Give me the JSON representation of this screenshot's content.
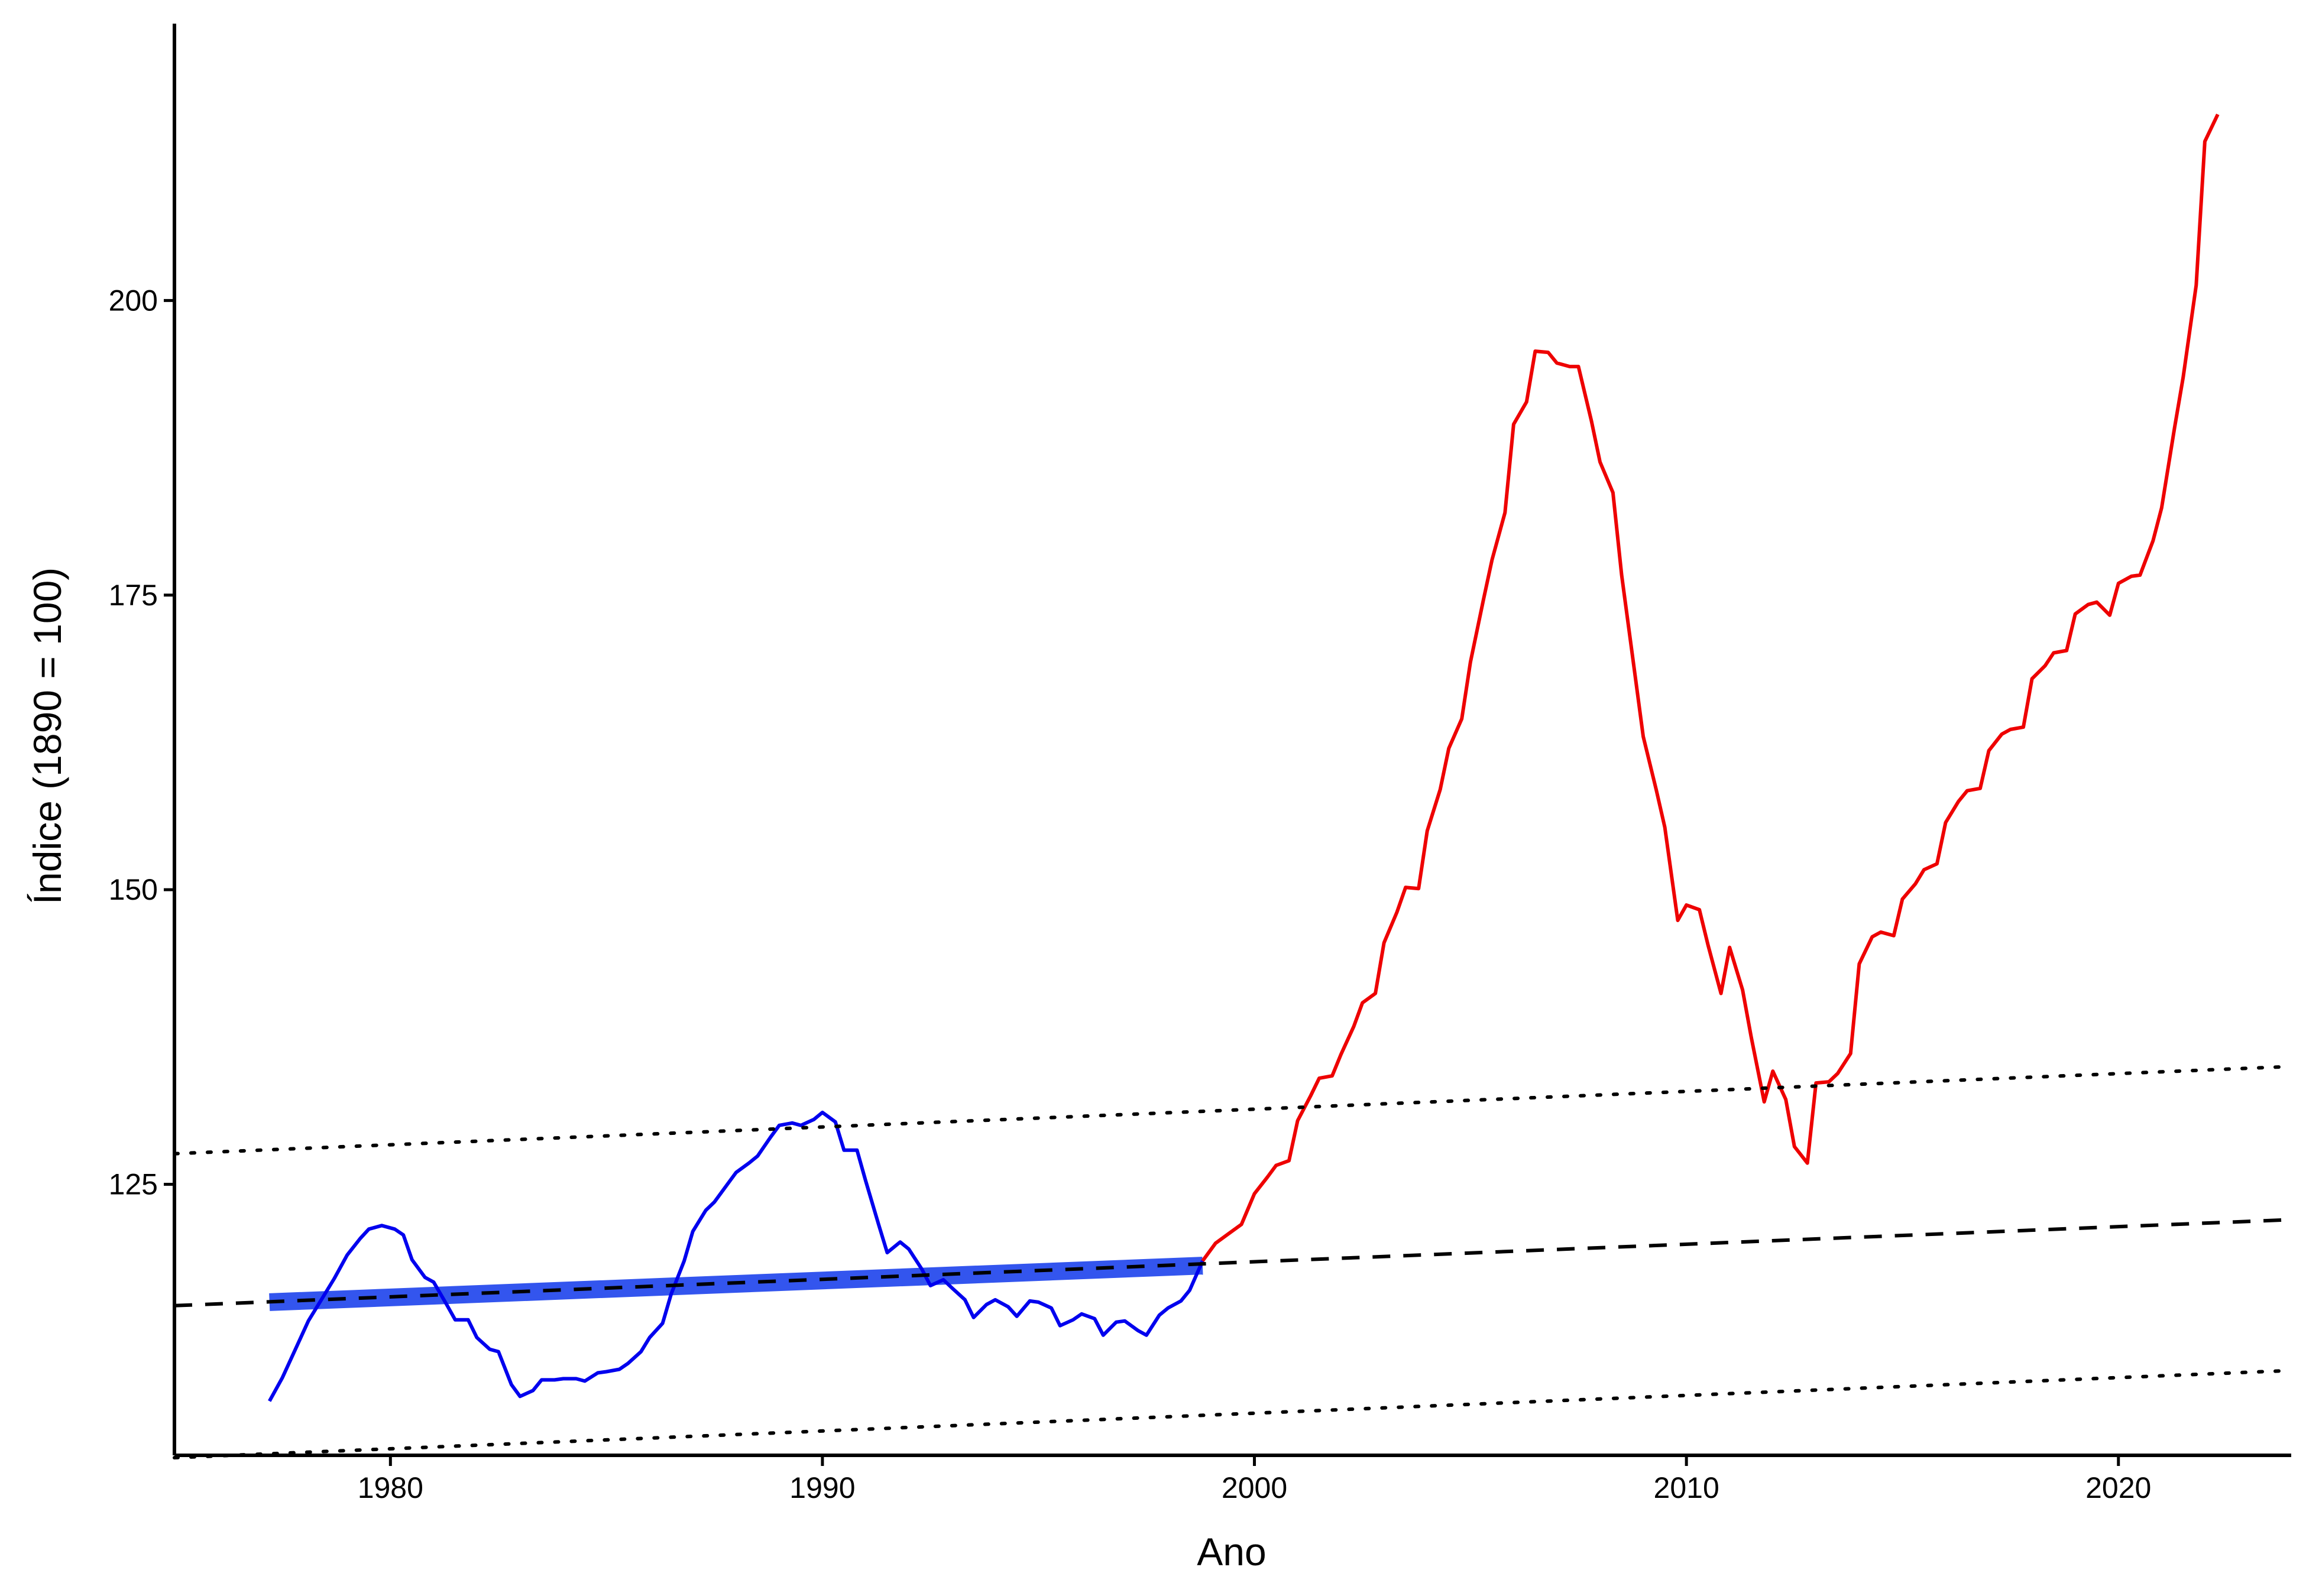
{
  "chart_data": {
    "type": "line",
    "title": "",
    "xlabel": "Ano",
    "ylabel": "Índice (1890 = 100)",
    "xlim": [
      1975.0,
      2024.0
    ],
    "ylim": [
      102,
      224
    ],
    "x_ticks": [
      1980,
      1990,
      2000,
      2010,
      2020
    ],
    "x_tick_labels": [
      "1980",
      "1990",
      "2000",
      "2010",
      "2020"
    ],
    "y_ticks": [
      125,
      150,
      175,
      200
    ],
    "y_tick_labels": [
      "125",
      "150",
      "175",
      "200"
    ],
    "grid": false,
    "legend": "none",
    "series": [
      {
        "color": "#0000ee",
        "style": "solid",
        "points": [
          [
            1977.2,
            106.6
          ],
          [
            1977.5,
            108.6
          ],
          [
            1977.8,
            111.0
          ],
          [
            1978.1,
            113.4
          ],
          [
            1978.4,
            115.2
          ],
          [
            1978.7,
            117.0
          ],
          [
            1979.0,
            119.0
          ],
          [
            1979.3,
            120.4
          ],
          [
            1979.5,
            121.2
          ],
          [
            1979.8,
            121.5
          ],
          [
            1980.1,
            121.2
          ],
          [
            1980.3,
            120.7
          ],
          [
            1980.5,
            118.6
          ],
          [
            1980.8,
            117.1
          ],
          [
            1981.0,
            116.7
          ],
          [
            1981.3,
            114.8
          ],
          [
            1981.5,
            113.5
          ],
          [
            1981.8,
            113.5
          ],
          [
            1982.0,
            112.0
          ],
          [
            1982.3,
            111.0
          ],
          [
            1982.5,
            110.8
          ],
          [
            1982.8,
            108.0
          ],
          [
            1983.0,
            107.0
          ],
          [
            1983.3,
            107.5
          ],
          [
            1983.5,
            108.4
          ],
          [
            1983.8,
            108.4
          ],
          [
            1984.0,
            108.5
          ],
          [
            1984.3,
            108.5
          ],
          [
            1984.5,
            108.3
          ],
          [
            1984.8,
            109.0
          ],
          [
            1985.0,
            109.1
          ],
          [
            1985.3,
            109.3
          ],
          [
            1985.5,
            109.8
          ],
          [
            1985.8,
            110.8
          ],
          [
            1986.0,
            112.0
          ],
          [
            1986.3,
            113.2
          ],
          [
            1986.5,
            115.7
          ],
          [
            1986.8,
            118.5
          ],
          [
            1987.0,
            121.0
          ],
          [
            1987.3,
            122.8
          ],
          [
            1987.5,
            123.5
          ],
          [
            1987.8,
            125.0
          ],
          [
            1988.0,
            126.0
          ],
          [
            1988.3,
            126.8
          ],
          [
            1988.5,
            127.4
          ],
          [
            1988.8,
            129.0
          ],
          [
            1989.0,
            130.0
          ],
          [
            1989.3,
            130.2
          ],
          [
            1989.5,
            130.0
          ],
          [
            1989.8,
            130.5
          ],
          [
            1990.0,
            131.1
          ],
          [
            1990.3,
            130.3
          ],
          [
            1990.5,
            127.9
          ],
          [
            1990.8,
            127.9
          ],
          [
            1991.0,
            125.3
          ],
          [
            1991.3,
            121.6
          ],
          [
            1991.5,
            119.2
          ],
          [
            1991.8,
            120.1
          ],
          [
            1992.0,
            119.5
          ],
          [
            1992.3,
            117.8
          ],
          [
            1992.5,
            116.4
          ],
          [
            1992.8,
            116.9
          ],
          [
            1993.0,
            116.2
          ],
          [
            1993.3,
            115.2
          ],
          [
            1993.5,
            113.7
          ],
          [
            1993.8,
            114.8
          ],
          [
            1994.0,
            115.2
          ],
          [
            1994.3,
            114.6
          ],
          [
            1994.5,
            113.8
          ],
          [
            1994.8,
            115.1
          ],
          [
            1995.0,
            115.0
          ],
          [
            1995.3,
            114.5
          ],
          [
            1995.5,
            113.0
          ],
          [
            1995.8,
            113.5
          ],
          [
            1996.0,
            114.0
          ],
          [
            1996.3,
            113.6
          ],
          [
            1996.5,
            112.2
          ],
          [
            1996.8,
            113.3
          ],
          [
            1997.0,
            113.4
          ],
          [
            1997.3,
            112.6
          ],
          [
            1997.5,
            112.2
          ],
          [
            1997.8,
            113.9
          ],
          [
            1998.0,
            114.5
          ],
          [
            1998.3,
            115.1
          ],
          [
            1998.5,
            116.0
          ],
          [
            1998.8,
            118.5
          ]
        ]
      },
      {
        "color": "#ee0000",
        "style": "solid",
        "points": [
          [
            1998.8,
            118.5
          ],
          [
            1999.1,
            120.0
          ],
          [
            1999.4,
            120.8
          ],
          [
            1999.7,
            121.6
          ],
          [
            2000.0,
            124.2
          ],
          [
            2000.3,
            125.6
          ],
          [
            2000.5,
            126.6
          ],
          [
            2000.8,
            127.0
          ],
          [
            2001.0,
            130.4
          ],
          [
            2001.3,
            132.5
          ],
          [
            2001.5,
            134.0
          ],
          [
            2001.8,
            134.2
          ],
          [
            2002.0,
            136.0
          ],
          [
            2002.3,
            138.4
          ],
          [
            2002.5,
            140.4
          ],
          [
            2002.8,
            141.2
          ],
          [
            2003.0,
            145.5
          ],
          [
            2003.3,
            148.1
          ],
          [
            2003.5,
            150.2
          ],
          [
            2003.8,
            150.1
          ],
          [
            2004.0,
            155.0
          ],
          [
            2004.3,
            158.5
          ],
          [
            2004.5,
            162.0
          ],
          [
            2004.8,
            164.5
          ],
          [
            2005.0,
            169.3
          ],
          [
            2005.3,
            174.6
          ],
          [
            2005.5,
            178.0
          ],
          [
            2005.8,
            182.0
          ],
          [
            2006.0,
            189.5
          ],
          [
            2006.3,
            191.4
          ],
          [
            2006.5,
            195.7
          ],
          [
            2006.8,
            195.6
          ],
          [
            2007.0,
            194.7
          ],
          [
            2007.3,
            194.4
          ],
          [
            2007.5,
            194.4
          ],
          [
            2007.8,
            189.8
          ],
          [
            2008.0,
            186.3
          ],
          [
            2008.3,
            183.7
          ],
          [
            2008.5,
            176.7
          ],
          [
            2008.8,
            168.5
          ],
          [
            2009.0,
            163.0
          ],
          [
            2009.3,
            158.5
          ],
          [
            2009.5,
            155.3
          ],
          [
            2009.8,
            147.4
          ],
          [
            2010.0,
            148.7
          ],
          [
            2010.3,
            148.3
          ],
          [
            2010.5,
            145.3
          ],
          [
            2010.8,
            141.2
          ],
          [
            2011.0,
            145.1
          ],
          [
            2011.3,
            141.5
          ],
          [
            2011.5,
            137.5
          ],
          [
            2011.8,
            132.0
          ],
          [
            2012.0,
            134.6
          ],
          [
            2012.3,
            132.2
          ],
          [
            2012.5,
            128.2
          ],
          [
            2012.8,
            126.8
          ],
          [
            2013.0,
            133.6
          ],
          [
            2013.3,
            133.7
          ],
          [
            2013.5,
            134.4
          ],
          [
            2013.8,
            136.1
          ],
          [
            2014.0,
            143.7
          ],
          [
            2014.3,
            146.0
          ],
          [
            2014.5,
            146.4
          ],
          [
            2014.8,
            146.1
          ],
          [
            2015.0,
            149.2
          ],
          [
            2015.3,
            150.5
          ],
          [
            2015.5,
            151.7
          ],
          [
            2015.8,
            152.2
          ],
          [
            2016.0,
            155.7
          ],
          [
            2016.3,
            157.5
          ],
          [
            2016.5,
            158.4
          ],
          [
            2016.8,
            158.6
          ],
          [
            2017.0,
            161.8
          ],
          [
            2017.3,
            163.2
          ],
          [
            2017.5,
            163.6
          ],
          [
            2017.8,
            163.8
          ],
          [
            2018.0,
            167.9
          ],
          [
            2018.3,
            169.0
          ],
          [
            2018.5,
            170.1
          ],
          [
            2018.8,
            170.3
          ],
          [
            2019.0,
            173.4
          ],
          [
            2019.3,
            174.2
          ],
          [
            2019.5,
            174.4
          ],
          [
            2019.8,
            173.3
          ],
          [
            2020.0,
            176.0
          ],
          [
            2020.3,
            176.6
          ],
          [
            2020.5,
            176.7
          ],
          [
            2020.8,
            179.6
          ],
          [
            2021.0,
            182.4
          ],
          [
            2021.3,
            189.2
          ],
          [
            2021.5,
            193.5
          ],
          [
            2021.8,
            201.3
          ],
          [
            2022.0,
            213.5
          ],
          [
            2022.3,
            215.8
          ]
        ]
      },
      {
        "color": "#3355ee",
        "style": "thick band",
        "points": [
          [
            1977.2,
            115.0
          ],
          [
            1998.8,
            118.1
          ]
        ]
      },
      {
        "color": "#000000",
        "style": "dashed",
        "points": [
          [
            1975.0,
            114.7
          ],
          [
            2024.0,
            122.0
          ]
        ]
      },
      {
        "color": "#000000",
        "style": "dotted",
        "points": [
          [
            1975.0,
            127.6
          ],
          [
            2024.0,
            135.0
          ]
        ]
      },
      {
        "color": "#000000",
        "style": "dotted",
        "points": [
          [
            1975.0,
            101.8
          ],
          [
            2024.0,
            109.2
          ]
        ]
      }
    ]
  }
}
